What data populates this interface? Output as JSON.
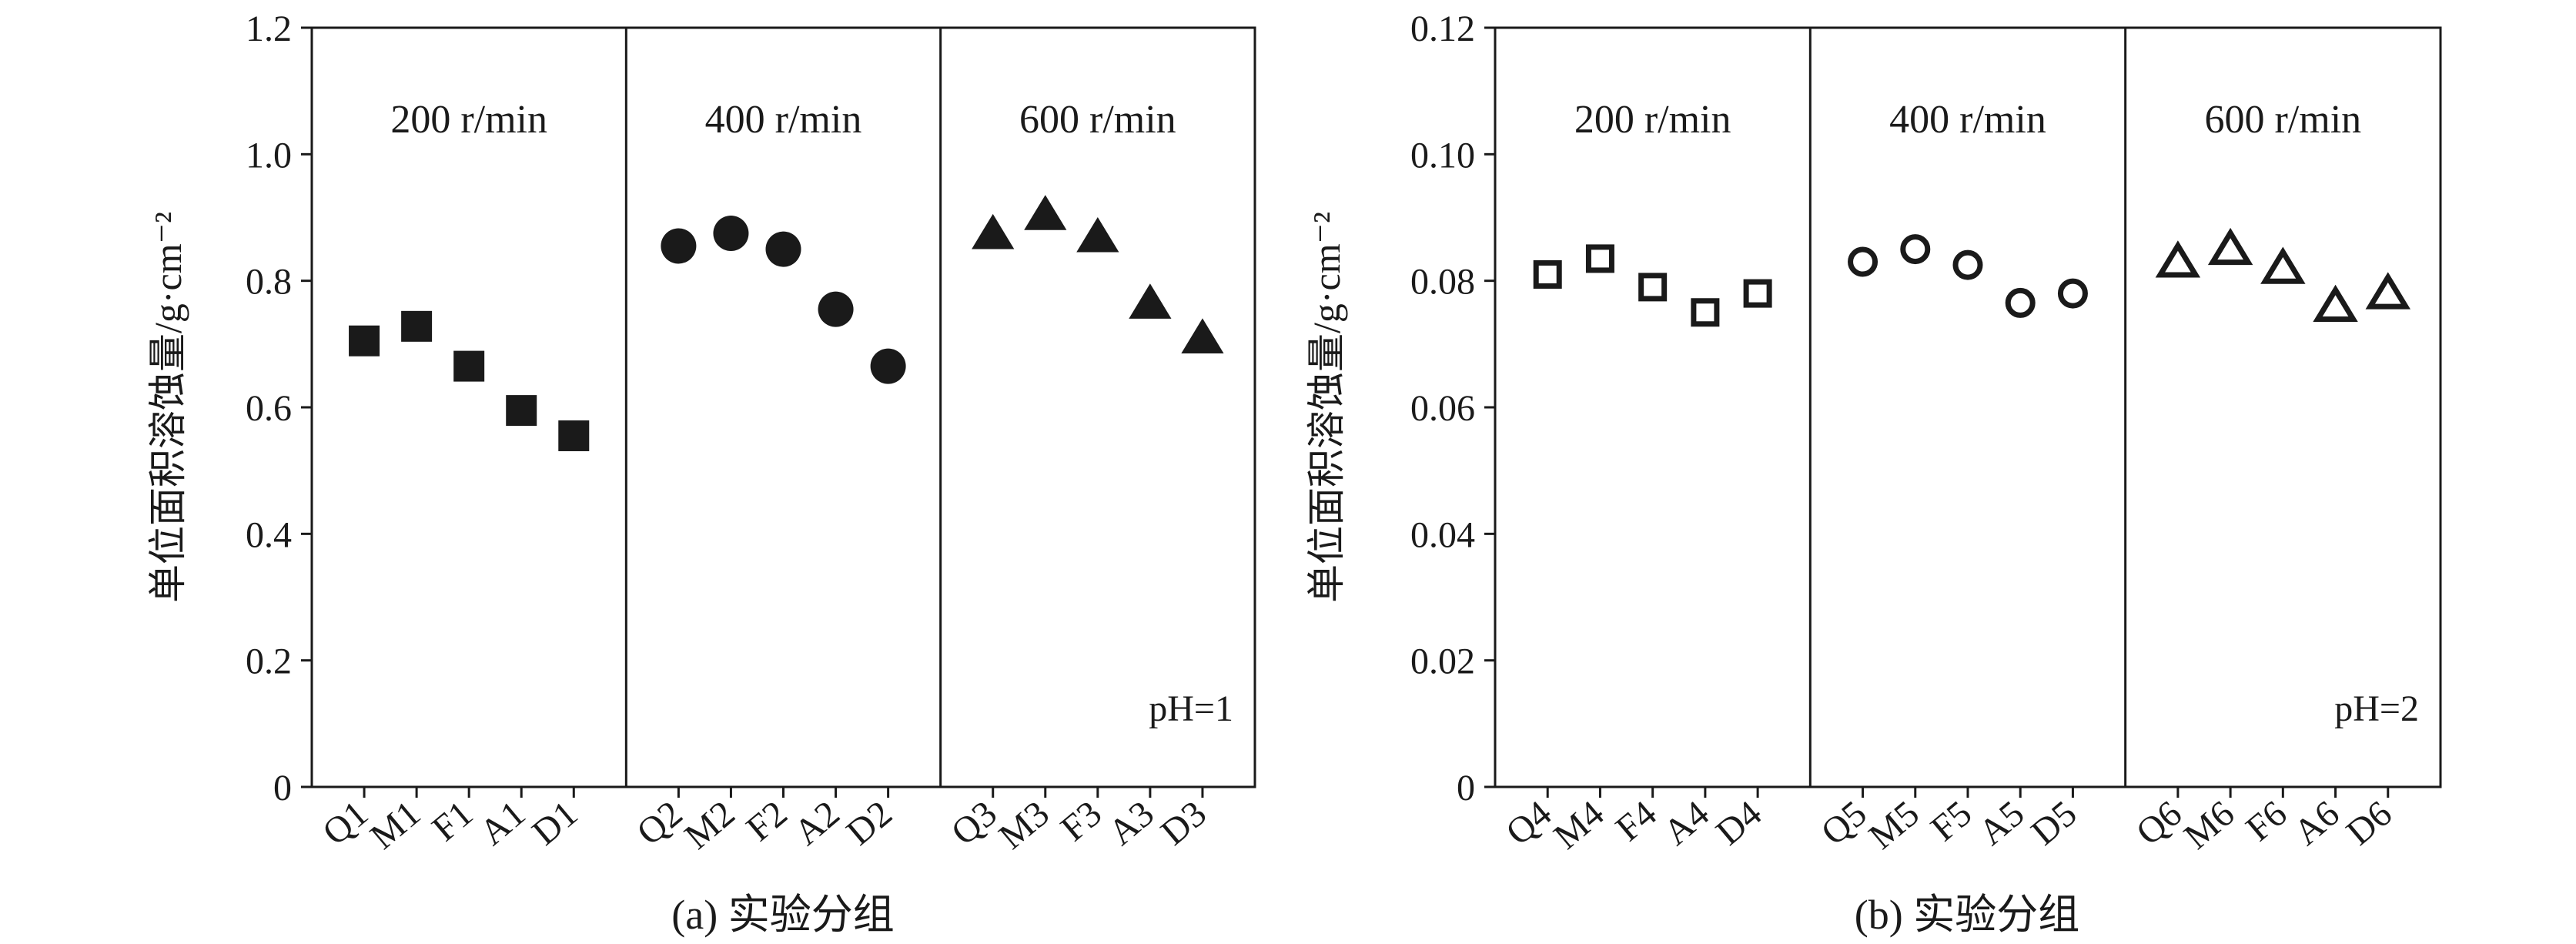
{
  "chart_data": [
    {
      "type": "scatter",
      "caption": "(a) 实验分组",
      "ylabel": "单位面积溶蚀量/g·cm⁻²",
      "ylim": [
        0,
        1.2
      ],
      "yticks": [
        "0",
        "0.2",
        "0.4",
        "0.6",
        "0.8",
        "1.0",
        "1.2"
      ],
      "annotation": "pH=1",
      "panels": [
        {
          "label": "200 r/min",
          "marker": "square-filled",
          "categories": [
            "Q1",
            "M1",
            "F1",
            "A1",
            "D1"
          ],
          "values": [
            0.705,
            0.728,
            0.665,
            0.595,
            0.555
          ]
        },
        {
          "label": "400 r/min",
          "marker": "circle-filled",
          "categories": [
            "Q2",
            "M2",
            "F2",
            "A2",
            "D2"
          ],
          "values": [
            0.855,
            0.875,
            0.85,
            0.755,
            0.665
          ]
        },
        {
          "label": "600 r/min",
          "marker": "triangle-filled",
          "categories": [
            "Q3",
            "M3",
            "F3",
            "A3",
            "D3"
          ],
          "values": [
            0.875,
            0.905,
            0.87,
            0.765,
            0.71
          ]
        }
      ]
    },
    {
      "type": "scatter",
      "caption": "(b) 实验分组",
      "ylabel": "单位面积溶蚀量/g·cm⁻²",
      "ylim": [
        0,
        0.12
      ],
      "yticks": [
        "0",
        "0.02",
        "0.04",
        "0.06",
        "0.08",
        "0.10",
        "0.12"
      ],
      "annotation": "pH=2",
      "panels": [
        {
          "label": "200 r/min",
          "marker": "square-open",
          "categories": [
            "Q4",
            "M4",
            "F4",
            "A4",
            "D4"
          ],
          "values": [
            0.081,
            0.0835,
            0.079,
            0.075,
            0.078
          ]
        },
        {
          "label": "400 r/min",
          "marker": "circle-open",
          "categories": [
            "Q5",
            "M5",
            "F5",
            "A5",
            "D5"
          ],
          "values": [
            0.083,
            0.085,
            0.0825,
            0.0765,
            0.078
          ]
        },
        {
          "label": "600 r/min",
          "marker": "triangle-open",
          "categories": [
            "Q6",
            "M6",
            "F6",
            "A6",
            "D6"
          ],
          "values": [
            0.083,
            0.085,
            0.082,
            0.076,
            0.078
          ]
        }
      ]
    }
  ]
}
